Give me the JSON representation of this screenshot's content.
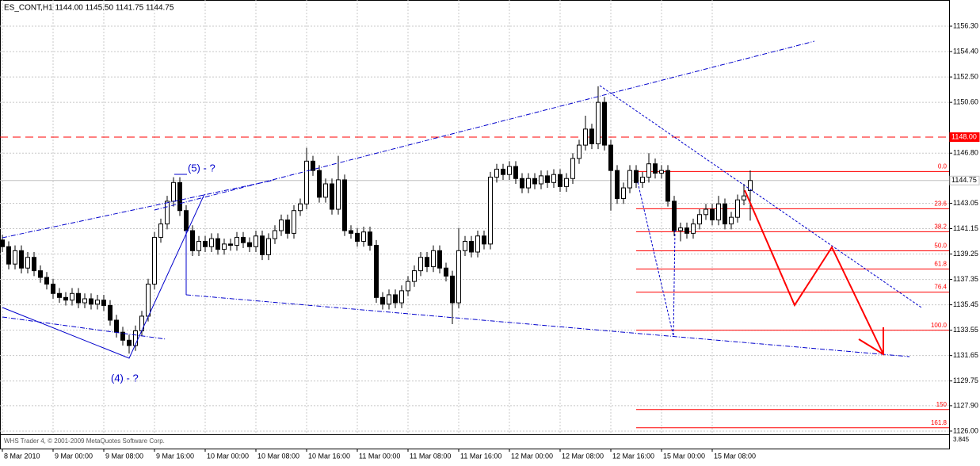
{
  "chart_data": {
    "type": "candlestick",
    "title": "ES_CONT,H1  1144.00 1145.50 1141.75 1144.75",
    "categories": [
      "8 Mar 2010",
      null,
      null,
      null,
      null,
      null,
      null,
      null,
      "9 Mar 00:00",
      null,
      null,
      null,
      null,
      null,
      null,
      null,
      "9 Mar 08:00",
      null,
      null,
      null,
      null,
      null,
      null,
      null,
      "9 Mar 16:00",
      null,
      null,
      null,
      null,
      null,
      null,
      null,
      "10 Mar 00:00",
      null,
      null,
      null,
      null,
      null,
      null,
      null,
      "10 Mar 08:00",
      null,
      null,
      null,
      null,
      null,
      null,
      null,
      "10 Mar 16:00",
      null,
      null,
      null,
      null,
      null,
      null,
      null,
      "11 Mar 00:00",
      null,
      null,
      null,
      null,
      null,
      null,
      null,
      "11 Mar 08:00",
      null,
      null,
      null,
      null,
      null,
      null,
      null,
      "11 Mar 16:00",
      null,
      null,
      null,
      null,
      null,
      null,
      null,
      "12 Mar 00:00",
      null,
      null,
      null,
      null,
      null,
      null,
      null,
      "12 Mar 08:00",
      null,
      null,
      null,
      null,
      null,
      null,
      null,
      "12 Mar 16:00",
      null,
      null,
      null,
      null,
      null,
      null,
      null,
      "15 Mar 00:00",
      null,
      null,
      null,
      null,
      null,
      null,
      null,
      "15 Mar 08:00",
      null,
      null,
      null,
      null,
      null,
      null
    ],
    "open": [
      1140.3,
      1139.8,
      1138.5,
      1139.5,
      1138.2,
      1139.0,
      1138.0,
      1137.5,
      1137.0,
      1136.3,
      1136.0,
      1135.8,
      1136.3,
      1135.6,
      1135.9,
      1135.5,
      1135.8,
      1135.4,
      1134.3,
      1133.4,
      1132.8,
      1132.4,
      1133.5,
      1134.6,
      1137.0,
      1140.5,
      1141.5,
      1143.2,
      1144.6,
      1142.5,
      1141.0,
      1139.5,
      1140.2,
      1139.8,
      1140.4,
      1139.6,
      1140.0,
      1139.9,
      1140.5,
      1140.1,
      1139.8,
      1140.6,
      1139.2,
      1140.4,
      1141.0,
      1141.8,
      1140.8,
      1142.5,
      1143.0,
      1146.2,
      1145.5,
      1143.5,
      1144.5,
      1142.6,
      1144.8,
      1141.0,
      1140.8,
      1140.2,
      1140.9,
      1139.9,
      1136.0,
      1135.5,
      1136.2,
      1135.6,
      1136.5,
      1137.2,
      1138.0,
      1139.0,
      1138.3,
      1139.5,
      1138.2,
      1137.6,
      1135.6,
      1139.5,
      1140.2,
      1139.4,
      1140.6,
      1140.0,
      1145.0,
      1145.6,
      1145.2,
      1145.8,
      1144.9,
      1144.2,
      1144.9,
      1144.5,
      1145.1,
      1144.6,
      1145.2,
      1144.3,
      1144.9,
      1146.4,
      1147.4,
      1148.6,
      1147.5,
      1150.6,
      1147.4,
      1145.5,
      1143.4,
      1144.2,
      1145.5,
      1144.6,
      1145.0,
      1146.0,
      1145.3,
      1145.5,
      1143.2,
      1141.0,
      1141.2,
      1140.8,
      1141.5,
      1142.2,
      1142.6,
      1141.8,
      1143.0,
      1141.5,
      1142.0,
      1143.3,
      1144.0
    ],
    "high": [
      1140.7,
      1140.2,
      1139.9,
      1139.9,
      1139.4,
      1139.4,
      1138.4,
      1137.9,
      1137.4,
      1136.7,
      1136.4,
      1136.7,
      1136.7,
      1136.3,
      1136.3,
      1136.2,
      1136.2,
      1135.8,
      1134.7,
      1133.8,
      1133.2,
      1133.9,
      1135.0,
      1137.4,
      1140.9,
      1141.9,
      1143.6,
      1145.0,
      1145.0,
      1142.9,
      1141.4,
      1140.6,
      1140.6,
      1140.8,
      1140.8,
      1140.4,
      1140.4,
      1140.9,
      1140.9,
      1140.5,
      1141.0,
      1141.0,
      1140.8,
      1141.4,
      1142.2,
      1142.2,
      1142.9,
      1143.4,
      1147.2,
      1146.6,
      1145.9,
      1144.9,
      1144.9,
      1146.6,
      1145.2,
      1141.4,
      1141.2,
      1141.3,
      1141.3,
      1140.3,
      1136.4,
      1136.6,
      1136.6,
      1136.9,
      1137.6,
      1138.4,
      1139.4,
      1139.4,
      1139.9,
      1139.9,
      1138.6,
      1138.0,
      1141.2,
      1140.6,
      1140.6,
      1141.0,
      1141.0,
      1145.4,
      1146.0,
      1146.0,
      1146.2,
      1146.2,
      1145.3,
      1145.3,
      1145.3,
      1145.5,
      1145.5,
      1145.6,
      1145.6,
      1145.3,
      1146.8,
      1147.8,
      1149.6,
      1149.0,
      1151.8,
      1151.0,
      1147.8,
      1145.9,
      1144.6,
      1145.9,
      1145.9,
      1145.4,
      1146.8,
      1146.4,
      1145.9,
      1145.9,
      1143.6,
      1141.6,
      1141.6,
      1141.9,
      1142.6,
      1143.0,
      1143.0,
      1143.6,
      1143.4,
      1142.4,
      1143.7,
      1144.5,
      1145.5
    ],
    "low": [
      1139.4,
      1138.1,
      1138.1,
      1137.8,
      1137.8,
      1137.6,
      1137.1,
      1136.6,
      1135.9,
      1135.6,
      1135.4,
      1135.4,
      1135.2,
      1135.2,
      1135.1,
      1135.1,
      1135.0,
      1133.9,
      1133.0,
      1132.4,
      1131.8,
      1132.0,
      1133.1,
      1134.2,
      1136.6,
      1140.1,
      1141.1,
      1142.8,
      1142.1,
      1140.6,
      1139.1,
      1139.1,
      1139.4,
      1139.4,
      1139.2,
      1139.2,
      1139.5,
      1139.5,
      1139.7,
      1139.4,
      1139.4,
      1138.8,
      1138.8,
      1140.0,
      1140.6,
      1140.4,
      1140.4,
      1142.1,
      1142.6,
      1145.1,
      1143.1,
      1143.1,
      1142.2,
      1142.2,
      1140.6,
      1140.4,
      1139.8,
      1139.8,
      1139.5,
      1135.6,
      1135.1,
      1135.1,
      1135.2,
      1135.2,
      1136.1,
      1136.8,
      1137.6,
      1137.9,
      1137.9,
      1137.8,
      1137.2,
      1134.0,
      1135.2,
      1139.1,
      1139.0,
      1139.0,
      1139.6,
      1139.6,
      1144.6,
      1144.8,
      1144.8,
      1144.5,
      1143.8,
      1143.8,
      1144.1,
      1144.1,
      1144.2,
      1144.2,
      1143.9,
      1143.9,
      1144.5,
      1146.0,
      1147.0,
      1147.1,
      1147.1,
      1147.0,
      1142.5,
      1143.0,
      1143.0,
      1143.8,
      1144.2,
      1144.2,
      1144.6,
      1144.9,
      1144.9,
      1142.8,
      1140.6,
      1140.2,
      1140.4,
      1140.4,
      1141.1,
      1141.8,
      1141.4,
      1141.4,
      1141.1,
      1141.1,
      1141.6,
      1142.9,
      1141.75
    ],
    "close": [
      1139.8,
      1138.5,
      1139.5,
      1138.2,
      1139.0,
      1138.0,
      1137.5,
      1137.0,
      1136.3,
      1136.0,
      1135.8,
      1136.3,
      1135.6,
      1135.9,
      1135.5,
      1135.8,
      1135.4,
      1134.3,
      1133.4,
      1132.8,
      1132.4,
      1133.5,
      1134.6,
      1137.0,
      1140.5,
      1141.5,
      1143.2,
      1144.6,
      1142.5,
      1141.0,
      1139.5,
      1140.2,
      1139.8,
      1140.4,
      1139.6,
      1140.0,
      1139.9,
      1140.5,
      1140.1,
      1139.8,
      1140.6,
      1139.2,
      1140.4,
      1141.0,
      1141.8,
      1140.8,
      1142.5,
      1143.0,
      1146.2,
      1145.5,
      1143.5,
      1144.5,
      1142.6,
      1144.8,
      1141.0,
      1140.8,
      1140.2,
      1140.9,
      1139.9,
      1136.0,
      1135.5,
      1136.2,
      1135.6,
      1136.5,
      1137.2,
      1138.0,
      1139.0,
      1138.3,
      1139.5,
      1138.2,
      1137.6,
      1135.6,
      1139.5,
      1140.2,
      1139.4,
      1140.6,
      1140.0,
      1145.0,
      1145.6,
      1145.2,
      1145.8,
      1144.9,
      1144.2,
      1144.9,
      1144.5,
      1145.1,
      1144.6,
      1145.2,
      1144.3,
      1144.9,
      1146.4,
      1147.4,
      1148.6,
      1147.5,
      1150.6,
      1147.4,
      1145.5,
      1143.4,
      1144.2,
      1145.5,
      1144.6,
      1145.0,
      1146.0,
      1145.3,
      1145.5,
      1143.2,
      1141.0,
      1141.2,
      1140.8,
      1141.5,
      1142.2,
      1142.6,
      1141.8,
      1143.0,
      1141.5,
      1142.0,
      1143.3,
      1143.6,
      1144.75
    ],
    "ylim": [
      1125.76,
      1158.14
    ],
    "yticks": [
      {
        "value": 1156.3,
        "label": "1156.30"
      },
      {
        "value": 1154.4,
        "label": "1154.40"
      },
      {
        "value": 1152.5,
        "label": "1152.50"
      },
      {
        "value": 1150.6,
        "label": "1150.60"
      },
      {
        "value": 1146.8,
        "label": "1146.80"
      },
      {
        "value": 1143.05,
        "label": "1143.05"
      },
      {
        "value": 1141.15,
        "label": "1141.15"
      },
      {
        "value": 1139.25,
        "label": "1139.25"
      },
      {
        "value": 1137.35,
        "label": "1137.35"
      },
      {
        "value": 1135.45,
        "label": "1135.45"
      },
      {
        "value": 1133.55,
        "label": "1133.55"
      },
      {
        "value": 1131.65,
        "label": "1131.65"
      },
      {
        "value": 1129.75,
        "label": "1129.75"
      },
      {
        "value": 1127.9,
        "label": "1127.90"
      },
      {
        "value": 1126.0,
        "label": "1126.00"
      }
    ],
    "grid": true,
    "bull_color": "#ffffff",
    "bear_color": "#000000",
    "price_lines": [
      {
        "value": 1148.0,
        "label": "1148.00",
        "color": "#ff0000"
      },
      {
        "value": 1144.75,
        "label": "1144.75",
        "color": "#c0c0c0"
      }
    ],
    "fib_color": "#ff0000",
    "fib_levels": [
      {
        "value": 1145.43,
        "label": "0.0"
      },
      {
        "value": 1142.64,
        "label": "23.6"
      },
      {
        "value": 1140.92,
        "label": "38.2"
      },
      {
        "value": 1139.49,
        "label": "50.0"
      },
      {
        "value": 1138.13,
        "label": "61.8"
      },
      {
        "value": 1136.4,
        "label": "76.4"
      },
      {
        "value": 1133.55,
        "label": "100.0"
      },
      {
        "value": 1127.61,
        "label": "150"
      },
      {
        "value": 1126.25,
        "label": "161.8"
      }
    ],
    "annotations": [
      "(5) - ?",
      "(4) - ?"
    ],
    "footer": "WHS Trader 4, © 2001-2009 MetaQuotes Software Corp.",
    "indicator_label": "3.845"
  }
}
